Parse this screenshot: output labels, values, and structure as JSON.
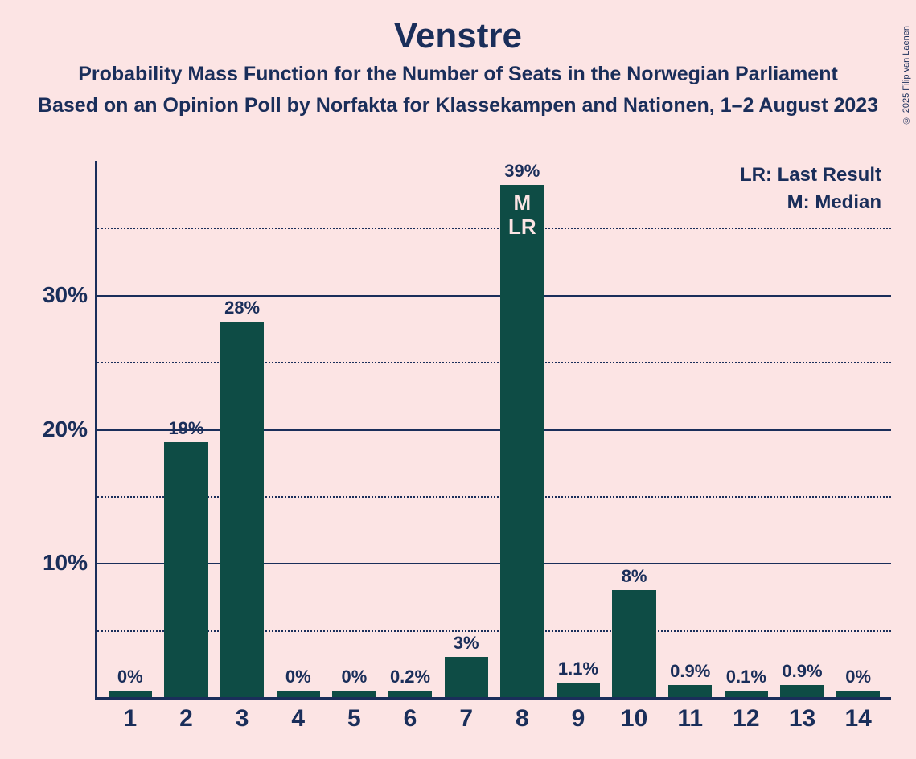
{
  "title": "Venstre",
  "subtitle1": "Probability Mass Function for the Number of Seats in the Norwegian Parliament",
  "subtitle2": "Based on an Opinion Poll by Norfakta for Klassekampen and Nationen, 1–2 August 2023",
  "copyright": "© 2025 Filip van Laenen",
  "legend": {
    "lr": "LR: Last Result",
    "m": "M: Median"
  },
  "chart": {
    "type": "bar",
    "background_color": "#fce4e4",
    "bar_color": "#0e4c45",
    "axis_color": "#1a2e5a",
    "grid_major_color": "#1a2e5a",
    "grid_minor_color": "#1a2e5a",
    "text_color": "#1a2e5a",
    "title_fontsize": 44,
    "subtitle_fontsize": 25,
    "ytick_fontsize": 28,
    "xtick_fontsize": 30,
    "barlabel_fontsize": 22,
    "annotation_fontsize": 26,
    "ymax": 40,
    "major_ticks": [
      10,
      20,
      30
    ],
    "minor_ticks": [
      5,
      15,
      25,
      35
    ],
    "ytick_labels": {
      "10": "10%",
      "20": "20%",
      "30": "30%"
    },
    "categories": [
      "1",
      "2",
      "3",
      "4",
      "5",
      "6",
      "7",
      "8",
      "9",
      "10",
      "11",
      "12",
      "13",
      "14"
    ],
    "values": [
      0,
      19,
      28,
      0,
      0,
      0.2,
      3,
      39,
      1.1,
      8,
      0.9,
      0.1,
      0.9,
      0
    ],
    "value_labels": [
      "0%",
      "19%",
      "28%",
      "0%",
      "0%",
      "0.2%",
      "3%",
      "39%",
      "1.1%",
      "8%",
      "0.9%",
      "0.1%",
      "0.9%",
      "0%"
    ],
    "annotations": {
      "8": {
        "line1": "M",
        "line2": "LR"
      }
    }
  }
}
